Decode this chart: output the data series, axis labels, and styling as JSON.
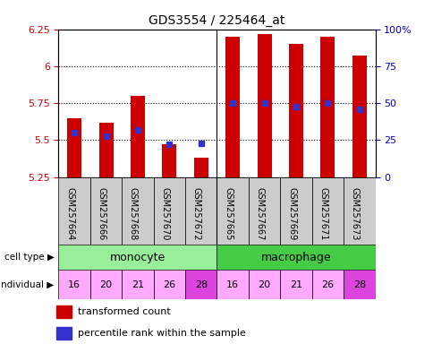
{
  "title": "GDS3554 / 225464_at",
  "samples": [
    "GSM257664",
    "GSM257666",
    "GSM257668",
    "GSM257670",
    "GSM257672",
    "GSM257665",
    "GSM257667",
    "GSM257669",
    "GSM257671",
    "GSM257673"
  ],
  "transformed_count": [
    5.65,
    5.62,
    5.8,
    5.47,
    5.38,
    6.2,
    6.22,
    6.15,
    6.2,
    6.07
  ],
  "percentile_rank": [
    30,
    28,
    32,
    22,
    23,
    50,
    50,
    48,
    50,
    46
  ],
  "ylim": [
    5.25,
    6.25
  ],
  "yticks": [
    5.25,
    5.5,
    5.75,
    6.0,
    6.25
  ],
  "ytick_labels": [
    "5.25",
    "5.5",
    "5.75",
    "6",
    "6.25"
  ],
  "right_yticks": [
    0,
    25,
    50,
    75,
    100
  ],
  "right_ytick_labels": [
    "0",
    "25",
    "50",
    "75",
    "100%"
  ],
  "bar_color": "#cc0000",
  "dot_color": "#3333cc",
  "bar_bottom": 5.25,
  "cell_type_colors": [
    "#99ee99",
    "#44cc44"
  ],
  "cell_type_labels": [
    "monocyte",
    "macrophage"
  ],
  "individuals": [
    "16",
    "20",
    "21",
    "26",
    "28",
    "16",
    "20",
    "21",
    "26",
    "28"
  ],
  "individual_colors": [
    "#ffaaff",
    "#ffaaff",
    "#ffaaff",
    "#ffaaff",
    "#dd44dd",
    "#ffaaff",
    "#ffaaff",
    "#ffaaff",
    "#ffaaff",
    "#dd44dd"
  ],
  "tick_label_color_left": "#cc0000",
  "tick_label_color_right": "#0000cc",
  "legend_red_label": "transformed count",
  "legend_blue_label": "percentile rank within the sample",
  "sample_bg_color": "#cccccc",
  "label_left_cell": "cell type",
  "label_left_ind": "individual"
}
